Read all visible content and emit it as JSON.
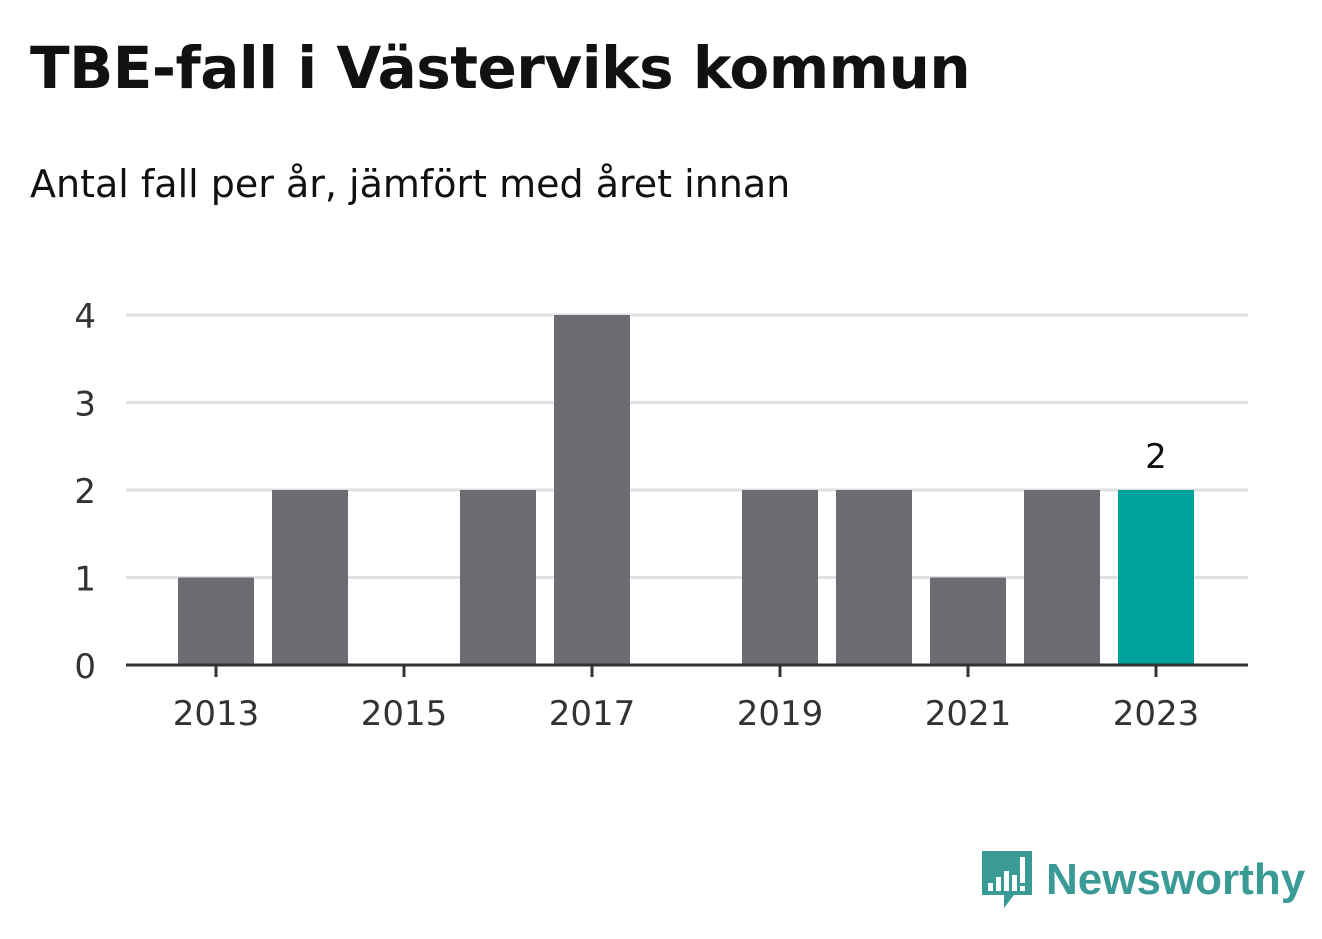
{
  "title": "TBE-fall i Västerviks kommun",
  "subtitle": "Antal fall per år, jämfört med året innan",
  "brand": {
    "name": "Newsworthy",
    "color": "#3a9b96"
  },
  "chart_data": {
    "type": "bar",
    "categories": [
      "2013",
      "2014",
      "2015",
      "2016",
      "2017",
      "2018",
      "2019",
      "2020",
      "2021",
      "2022",
      "2023"
    ],
    "values": [
      1,
      2,
      0,
      2,
      4,
      0,
      2,
      2,
      1,
      2,
      2
    ],
    "x_tick_labels": [
      "2013",
      "2015",
      "2017",
      "2019",
      "2021",
      "2023"
    ],
    "y_ticks": [
      0,
      1,
      2,
      3,
      4
    ],
    "ylim": [
      0,
      4
    ],
    "grid": true,
    "highlight": {
      "category": "2023",
      "label": "2"
    },
    "colors": {
      "bar": "#6d6c72",
      "highlight": "#00a39b",
      "grid": "#e0e0e0",
      "axis": "#333333"
    }
  }
}
